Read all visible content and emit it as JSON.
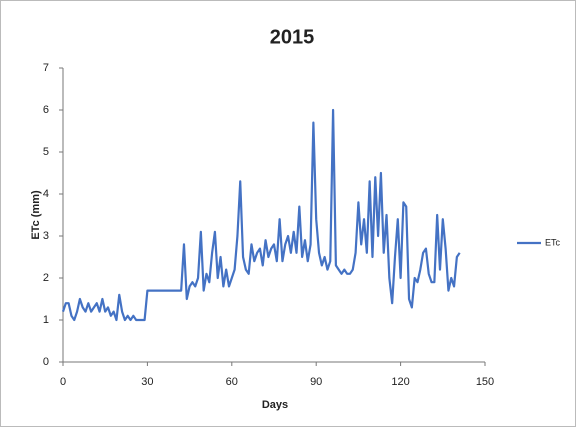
{
  "chart_data": {
    "type": "line",
    "title": "2015",
    "x_label": "Days",
    "y_label": "ETc (mm)",
    "xlim": [
      0,
      150
    ],
    "xticks": [
      0,
      30,
      60,
      90,
      120,
      150
    ],
    "ylim": [
      0,
      7
    ],
    "yticks": [
      0,
      1,
      2,
      3,
      4,
      5,
      6,
      7
    ],
    "grid": false,
    "legend": "right",
    "x": [
      0,
      1,
      2,
      3,
      4,
      5,
      6,
      7,
      8,
      9,
      10,
      11,
      12,
      13,
      14,
      15,
      16,
      17,
      18,
      19,
      20,
      21,
      22,
      23,
      24,
      25,
      26,
      27,
      28,
      29,
      30,
      42,
      43,
      44,
      45,
      46,
      47,
      48,
      49,
      50,
      51,
      52,
      53,
      54,
      55,
      56,
      57,
      58,
      59,
      60,
      61,
      62,
      63,
      64,
      65,
      66,
      67,
      68,
      69,
      70,
      71,
      72,
      73,
      74,
      75,
      76,
      77,
      78,
      79,
      80,
      81,
      82,
      83,
      84,
      85,
      86,
      87,
      88,
      89,
      90,
      91,
      92,
      93,
      94,
      95,
      96,
      97,
      98,
      99,
      100,
      101,
      102,
      103,
      104,
      105,
      106,
      107,
      108,
      109,
      110,
      111,
      112,
      113,
      114,
      115,
      116,
      117,
      118,
      119,
      120,
      121,
      122,
      123,
      124,
      125,
      126,
      127,
      128,
      129,
      130,
      131,
      132,
      133,
      134,
      135,
      136,
      137,
      138,
      139,
      140,
      141
    ],
    "series": [
      {
        "name": "ETc",
        "color": "#4472c4",
        "values": [
          1.2,
          1.4,
          1.4,
          1.1,
          1.0,
          1.2,
          1.5,
          1.3,
          1.2,
          1.4,
          1.2,
          1.3,
          1.4,
          1.2,
          1.5,
          1.2,
          1.3,
          1.1,
          1.2,
          1.0,
          1.6,
          1.2,
          1.0,
          1.1,
          1.0,
          1.1,
          1.0,
          1.0,
          1.0,
          1.0,
          1.7,
          1.7,
          2.8,
          1.5,
          1.8,
          1.9,
          1.8,
          2.0,
          3.1,
          1.7,
          2.1,
          1.9,
          2.6,
          3.1,
          2.0,
          2.5,
          1.8,
          2.2,
          1.8,
          2.0,
          2.2,
          3.0,
          4.3,
          2.5,
          2.2,
          2.1,
          2.8,
          2.4,
          2.6,
          2.7,
          2.3,
          2.9,
          2.5,
          2.7,
          2.8,
          2.4,
          3.4,
          2.4,
          2.8,
          3.0,
          2.6,
          3.1,
          2.6,
          3.7,
          2.5,
          2.9,
          2.4,
          2.8,
          5.7,
          3.4,
          2.6,
          2.3,
          2.5,
          2.2,
          2.4,
          6.0,
          2.3,
          2.2,
          2.1,
          2.2,
          2.1,
          2.1,
          2.2,
          2.6,
          3.8,
          2.8,
          3.4,
          2.6,
          4.3,
          2.5,
          4.4,
          3.0,
          4.5,
          2.6,
          3.5,
          2.0,
          1.4,
          2.5,
          3.4,
          2.0,
          3.8,
          3.7,
          1.5,
          1.3,
          2.0,
          1.9,
          2.2,
          2.6,
          2.7,
          2.1,
          1.9,
          1.9,
          3.5,
          2.2,
          3.4,
          2.7,
          1.7,
          2.0,
          1.8,
          2.5,
          2.6
        ]
      }
    ]
  }
}
